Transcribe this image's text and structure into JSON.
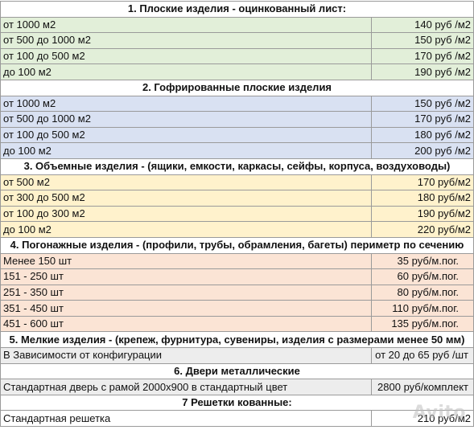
{
  "sections": [
    {
      "title": "1. Плоские изделия - оцинкованный лист:",
      "color": "#e2efd9",
      "rows": [
        {
          "item": "от 1000 м2",
          "price": "140 руб /м2"
        },
        {
          "item": "от 500 до 1000 м2",
          "price": "150 руб /м2"
        },
        {
          "item": "от 100 до 500 м2",
          "price": "170 руб /м2"
        },
        {
          "item": "до 100 м2",
          "price": "190 руб /м2"
        }
      ]
    },
    {
      "title": "2. Гофрированные плоские изделия",
      "color": "#d9e1f2",
      "rows": [
        {
          "item": "от 1000 м2",
          "price": "150 руб /м2"
        },
        {
          "item": "от 500 до 1000 м2",
          "price": "170 руб /м2"
        },
        {
          "item": "от 100 до 500 м2",
          "price": "180 руб /м2"
        },
        {
          "item": "до 100 м2",
          "price": "200 руб /м2"
        }
      ]
    },
    {
      "title": "3. Объемные изделия - (ящики, емкости, каркасы, сейфы, корпуса, воздуховоды)",
      "color": "#fff2cc",
      "rows": [
        {
          "item": "от 500 м2",
          "price": "170 руб/м2"
        },
        {
          "item": "от 300 до 500 м2",
          "price": "180 руб/м2"
        },
        {
          "item": "от 100 до 300 м2",
          "price": "190 руб/м2"
        },
        {
          "item": "до 100 м2",
          "price": "220 руб/м2"
        }
      ]
    },
    {
      "title": "4. Погонажные изделия - (профили, трубы, обрамления, багеты) периметр по сечению",
      "color": "#fbe4d5",
      "rows": [
        {
          "item": "Менее 150 шт",
          "price": "35 руб/м.пог."
        },
        {
          "item": "151 - 250 шт",
          "price": "60 руб/м.пог."
        },
        {
          "item": "251 - 350 шт",
          "price": "80 руб/м.пог."
        },
        {
          "item": "351 - 450 шт",
          "price": "110 руб/м.пог."
        },
        {
          "item": "451 - 600 шт",
          "price": "135 руб/м.пог."
        }
      ]
    },
    {
      "title": "5. Мелкие изделия - (крепеж, фурнитура, сувениры, изделия с размерами менее 50 мм)",
      "color": "#ededed",
      "rows": [
        {
          "item": "В Зависимости от конфигурации",
          "price": "от 20 до 65 руб /шт"
        }
      ]
    },
    {
      "title": "6. Двери металлические",
      "color": "#ededed",
      "rows": [
        {
          "item": "Стандартная дверь с рамой 2000х900 в стандартный цвет",
          "price": "2800 руб/комплект"
        }
      ]
    },
    {
      "title": "7 Решетки кованные:",
      "color": "#ffffff",
      "rows": [
        {
          "item": "Стандартная решетка",
          "price": "210 руб/м2"
        }
      ]
    }
  ],
  "watermark": "Avito"
}
